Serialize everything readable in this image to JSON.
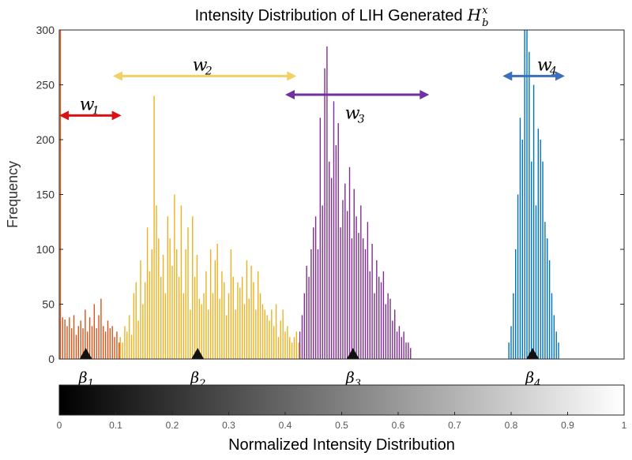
{
  "chart_data": {
    "type": "bar",
    "title_prefix": "Intensity Distribution of LIH Generated",
    "title_symbol": "H",
    "title_sub": "b",
    "title_sup": "x",
    "ylabel": "Frequency",
    "xlabel": "Normalized Intensity Distribution",
    "ylim": [
      0,
      300
    ],
    "xlim": [
      0,
      1
    ],
    "y_ticks": [
      "0",
      "50",
      "100",
      "150",
      "200",
      "250",
      "300"
    ],
    "x_ticks": [
      "0",
      "0.1",
      "0.2",
      "0.3",
      "0.4",
      "0.5",
      "0.6",
      "0.7",
      "0.8",
      "0.9",
      "1"
    ],
    "colorbar": {
      "from": "#000000",
      "to": "#ffffff"
    },
    "series": [
      {
        "color": "#d95319",
        "x": [
          0.002,
          0.006,
          0.01,
          0.014,
          0.018,
          0.022,
          0.026,
          0.03,
          0.034,
          0.038,
          0.042,
          0.046,
          0.05,
          0.054,
          0.058,
          0.062,
          0.066,
          0.07,
          0.074,
          0.078,
          0.082,
          0.086,
          0.09,
          0.094,
          0.098,
          0.102,
          0.106
        ],
        "values": [
          300,
          38,
          36,
          30,
          38,
          28,
          40,
          22,
          30,
          35,
          28,
          45,
          25,
          38,
          30,
          50,
          28,
          40,
          55,
          30,
          25,
          35,
          28,
          30,
          20,
          25,
          15
        ]
      },
      {
        "color": "#edb120",
        "x": [
          0.108,
          0.112,
          0.116,
          0.12,
          0.124,
          0.128,
          0.132,
          0.136,
          0.14,
          0.144,
          0.148,
          0.152,
          0.156,
          0.16,
          0.164,
          0.168,
          0.172,
          0.176,
          0.18,
          0.184,
          0.188,
          0.192,
          0.196,
          0.2,
          0.204,
          0.208,
          0.212,
          0.216,
          0.22,
          0.224,
          0.228,
          0.232,
          0.236,
          0.24,
          0.244,
          0.248,
          0.252,
          0.256,
          0.26,
          0.264,
          0.268,
          0.272,
          0.276,
          0.28,
          0.284,
          0.288,
          0.292,
          0.296,
          0.3,
          0.304,
          0.308,
          0.312,
          0.316,
          0.32,
          0.324,
          0.328,
          0.332,
          0.336,
          0.34,
          0.344,
          0.348,
          0.352,
          0.356,
          0.36,
          0.364,
          0.368,
          0.372,
          0.376,
          0.38,
          0.384,
          0.388,
          0.392,
          0.396,
          0.4,
          0.404,
          0.408,
          0.412,
          0.416,
          0.42,
          0.424
        ],
        "values": [
          20,
          15,
          30,
          25,
          40,
          22,
          60,
          70,
          35,
          90,
          50,
          70,
          120,
          80,
          100,
          240,
          140,
          110,
          75,
          95,
          60,
          130,
          110,
          85,
          150,
          100,
          75,
          140,
          60,
          100,
          120,
          45,
          130,
          75,
          95,
          55,
          50,
          60,
          80,
          45,
          100,
          60,
          90,
          105,
          55,
          80,
          70,
          40,
          60,
          100,
          75,
          45,
          70,
          65,
          75,
          50,
          90,
          55,
          85,
          70,
          45,
          80,
          60,
          50,
          45,
          40,
          35,
          45,
          30,
          50,
          20,
          35,
          45,
          25,
          30,
          20,
          15,
          20,
          25,
          15
        ]
      },
      {
        "color": "#7e2f8e",
        "x": [
          0.426,
          0.43,
          0.434,
          0.438,
          0.442,
          0.446,
          0.45,
          0.454,
          0.458,
          0.462,
          0.466,
          0.47,
          0.474,
          0.478,
          0.482,
          0.486,
          0.49,
          0.494,
          0.498,
          0.502,
          0.506,
          0.51,
          0.514,
          0.518,
          0.522,
          0.526,
          0.53,
          0.534,
          0.538,
          0.542,
          0.546,
          0.55,
          0.554,
          0.558,
          0.562,
          0.566,
          0.57,
          0.574,
          0.578,
          0.582,
          0.586,
          0.59,
          0.594,
          0.598,
          0.602,
          0.606,
          0.61,
          0.614,
          0.618,
          0.622
        ],
        "values": [
          25,
          40,
          60,
          85,
          75,
          100,
          120,
          130,
          100,
          220,
          140,
          265,
          285,
          180,
          165,
          235,
          195,
          215,
          120,
          145,
          160,
          135,
          175,
          110,
          155,
          130,
          115,
          140,
          110,
          100,
          125,
          80,
          105,
          60,
          90,
          75,
          70,
          80,
          50,
          60,
          55,
          35,
          45,
          25,
          30,
          20,
          25,
          15,
          15,
          10
        ]
      },
      {
        "color": "#0072bd",
        "x": [
          0.796,
          0.8,
          0.804,
          0.808,
          0.812,
          0.816,
          0.82,
          0.824,
          0.828,
          0.832,
          0.836,
          0.84,
          0.844,
          0.848,
          0.852,
          0.856,
          0.86,
          0.864,
          0.868,
          0.872,
          0.876,
          0.88,
          0.884
        ],
        "values": [
          15,
          30,
          60,
          100,
          150,
          220,
          200,
          300,
          300,
          280,
          180,
          250,
          140,
          210,
          200,
          180,
          125,
          110,
          90,
          60,
          40,
          25,
          15
        ]
      }
    ],
    "markers": [
      {
        "label": "β",
        "sub": "1",
        "x": 0.047
      },
      {
        "label": "β",
        "sub": "2",
        "x": 0.245
      },
      {
        "label": "β",
        "sub": "3",
        "x": 0.52
      },
      {
        "label": "β",
        "sub": "4",
        "x": 0.838
      }
    ],
    "annotations": [
      {
        "label": "w",
        "sub": "1",
        "color": "#dd1111",
        "from": 0.0,
        "to": 0.11,
        "y": 222,
        "label_x": 0.05,
        "label_y": 232
      },
      {
        "label": "w",
        "sub": "2",
        "color": "#f2d064",
        "from": 0.095,
        "to": 0.42,
        "y": 258,
        "label_x": 0.25,
        "label_y": 268
      },
      {
        "label": "w",
        "sub": "3",
        "color": "#7030a0",
        "from": 0.4,
        "to": 0.655,
        "y": 241,
        "label_x": 0.52,
        "label_y": 224
      },
      {
        "label": "w",
        "sub": "4",
        "color": "#3a6fbd",
        "from": 0.785,
        "to": 0.895,
        "y": 258,
        "label_x": 0.86,
        "label_y": 268
      }
    ]
  }
}
